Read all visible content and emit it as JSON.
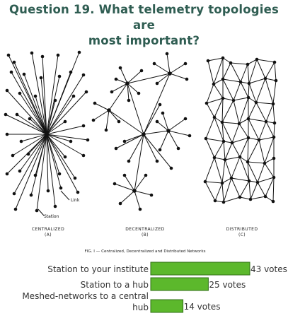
{
  "question": {
    "line1": "Question 19. What telemetry topologies are",
    "line2": "most important?"
  },
  "figure": {
    "label_a": "CENTRALIZED",
    "sub_a": "(A)",
    "label_b": "DECENTRALIZED",
    "sub_b": "(B)",
    "label_c": "DISTRIBUTED",
    "sub_c": "(C)",
    "caption": "FIG. I — Centralized, Decentralized and Distributed Networks",
    "annot_link": "Link",
    "annot_station": "Station"
  },
  "chart_data": {
    "type": "bar",
    "orientation": "horizontal",
    "categories": [
      "Station to your institute",
      "Station to a hub",
      "Meshed-networks to a central hub"
    ],
    "category_lines": [
      [
        "Station to your institute"
      ],
      [
        "Station to a hub"
      ],
      [
        "Meshed-networks to a central",
        "hub"
      ]
    ],
    "values": [
      43,
      25,
      14
    ],
    "value_labels": [
      "43 votes",
      "25 votes",
      "14 votes"
    ],
    "color": "#5cb82c",
    "border_color": "#2f6e16"
  }
}
